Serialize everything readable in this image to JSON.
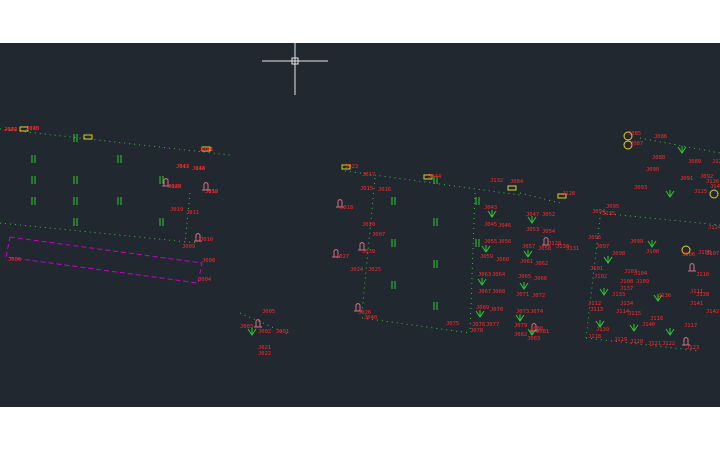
{
  "colors": {
    "canvas": "#212830",
    "label": "#ff2a2a",
    "dot": "#3fbf3f",
    "grass": "#2fcc2f",
    "yellow": "#e0d020",
    "magenta": "#c800c8",
    "hydrant": "#d07080",
    "crosshair": "#e8e8e8"
  },
  "labels": [
    {
      "t": "J032"
    },
    {
      "t": "J030"
    },
    {
      "t": "J041"
    },
    {
      "t": "J013"
    },
    {
      "t": "J014"
    },
    {
      "t": "J028"
    },
    {
      "t": "J012"
    },
    {
      "t": "J019"
    },
    {
      "t": "J011"
    },
    {
      "t": "J010"
    },
    {
      "t": "J009"
    },
    {
      "t": "J008"
    },
    {
      "t": "J006"
    },
    {
      "t": "J004"
    },
    {
      "t": "J005"
    },
    {
      "t": "J003"
    },
    {
      "t": "J002"
    },
    {
      "t": "J001"
    },
    {
      "t": "J021"
    },
    {
      "t": "J022"
    },
    {
      "t": "J023"
    },
    {
      "t": "J017"
    },
    {
      "t": "J015"
    },
    {
      "t": "J016"
    },
    {
      "t": "J018"
    },
    {
      "t": "J020"
    },
    {
      "t": "J007"
    },
    {
      "t": "J027"
    },
    {
      "t": "J039"
    },
    {
      "t": "J024"
    },
    {
      "t": "J025"
    },
    {
      "t": "J026"
    },
    {
      "t": "J040"
    },
    {
      "t": "J044"
    },
    {
      "t": "J043"
    },
    {
      "t": "J045"
    },
    {
      "t": "J046"
    },
    {
      "t": "J047"
    },
    {
      "t": "J052"
    },
    {
      "t": "J053"
    },
    {
      "t": "J054"
    },
    {
      "t": "J055"
    },
    {
      "t": "J056"
    },
    {
      "t": "J057"
    },
    {
      "t": "J058"
    },
    {
      "t": "J059"
    },
    {
      "t": "J060"
    },
    {
      "t": "J061"
    },
    {
      "t": "J062"
    },
    {
      "t": "J063"
    },
    {
      "t": "J064"
    },
    {
      "t": "J065"
    },
    {
      "t": "J066"
    },
    {
      "t": "J067"
    },
    {
      "t": "J068"
    },
    {
      "t": "J069"
    },
    {
      "t": "J070"
    },
    {
      "t": "J071"
    },
    {
      "t": "J072"
    },
    {
      "t": "J073"
    },
    {
      "t": "J074"
    },
    {
      "t": "J075"
    },
    {
      "t": "J076"
    },
    {
      "t": "J077"
    },
    {
      "t": "J078"
    },
    {
      "t": "J079"
    },
    {
      "t": "J080"
    },
    {
      "t": "J081"
    },
    {
      "t": "J082"
    },
    {
      "t": "J083"
    },
    {
      "t": "J084"
    },
    {
      "t": "J085"
    },
    {
      "t": "J086"
    },
    {
      "t": "J087"
    },
    {
      "t": "J088"
    },
    {
      "t": "J089"
    },
    {
      "t": "J090"
    },
    {
      "t": "J091"
    },
    {
      "t": "J092"
    },
    {
      "t": "J093"
    },
    {
      "t": "J094"
    },
    {
      "t": "J095"
    },
    {
      "t": "J096"
    },
    {
      "t": "J097"
    },
    {
      "t": "J098"
    },
    {
      "t": "J099"
    },
    {
      "t": "J100"
    },
    {
      "t": "J101"
    },
    {
      "t": "J102"
    },
    {
      "t": "J103"
    },
    {
      "t": "J104"
    },
    {
      "t": "J105"
    },
    {
      "t": "J106"
    },
    {
      "t": "J107"
    },
    {
      "t": "J108"
    },
    {
      "t": "J109"
    },
    {
      "t": "J110"
    },
    {
      "t": "J111"
    },
    {
      "t": "J112"
    },
    {
      "t": "J113"
    },
    {
      "t": "J114"
    },
    {
      "t": "J115"
    },
    {
      "t": "J116"
    },
    {
      "t": "J117"
    },
    {
      "t": "J118"
    },
    {
      "t": "J119"
    },
    {
      "t": "J120"
    },
    {
      "t": "J121"
    },
    {
      "t": "J122"
    },
    {
      "t": "J123"
    },
    {
      "t": "J124"
    },
    {
      "t": "J125"
    },
    {
      "t": "J126"
    },
    {
      "t": "J127"
    },
    {
      "t": "J128"
    },
    {
      "t": "J129"
    },
    {
      "t": "J130"
    },
    {
      "t": "J131"
    },
    {
      "t": "J132"
    },
    {
      "t": "J133"
    },
    {
      "t": "J134"
    },
    {
      "t": "J135"
    },
    {
      "t": "J136"
    },
    {
      "t": "J137"
    },
    {
      "t": "J138"
    },
    {
      "t": "J139"
    },
    {
      "t": "J140"
    },
    {
      "t": "J141"
    },
    {
      "t": "J142"
    },
    {
      "t": "J143"
    },
    {
      "t": "J144"
    },
    {
      "t": "J145"
    },
    {
      "t": "J146"
    },
    {
      "t": "J147"
    },
    {
      "t": "J148"
    },
    {
      "t": "J149"
    },
    {
      "t": "J150"
    }
  ]
}
